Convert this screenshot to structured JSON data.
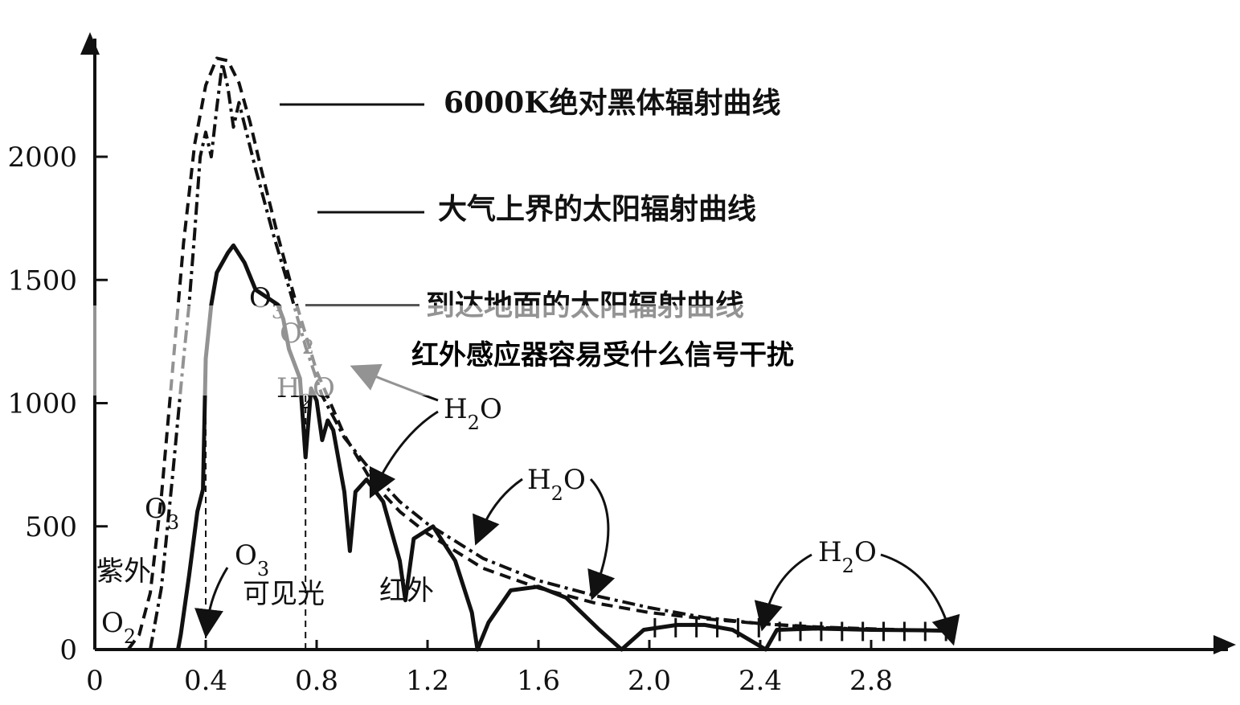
{
  "chart_data": {
    "type": "line",
    "xlim": [
      0,
      3.2
    ],
    "ylim": [
      0,
      2450
    ],
    "x_ticks": [
      "0",
      "0.4",
      "0.8",
      "1.2",
      "1.6",
      "2.0",
      "2.4",
      "2.8"
    ],
    "x_tick_values": [
      0,
      0.4,
      0.8,
      1.2,
      1.6,
      2.0,
      2.4,
      2.8
    ],
    "y_ticks": [
      "0",
      "500",
      "1000",
      "1500",
      "2000"
    ],
    "y_tick_values": [
      0,
      500,
      1000,
      1500,
      2000
    ],
    "series": [
      {
        "name": "6000K绝对黑体辐射曲线",
        "style": "dashed",
        "points": [
          [
            0.12,
            0
          ],
          [
            0.16,
            60
          ],
          [
            0.2,
            230
          ],
          [
            0.24,
            620
          ],
          [
            0.28,
            1130
          ],
          [
            0.32,
            1650
          ],
          [
            0.36,
            2050
          ],
          [
            0.4,
            2290
          ],
          [
            0.44,
            2400
          ],
          [
            0.48,
            2390
          ],
          [
            0.52,
            2300
          ],
          [
            0.56,
            2140
          ],
          [
            0.6,
            1950
          ],
          [
            0.66,
            1680
          ],
          [
            0.72,
            1430
          ],
          [
            0.8,
            1130
          ],
          [
            0.9,
            870
          ],
          [
            1.0,
            680
          ],
          [
            1.1,
            560
          ],
          [
            1.2,
            470
          ],
          [
            1.3,
            400
          ],
          [
            1.4,
            330
          ],
          [
            1.6,
            250
          ],
          [
            1.8,
            190
          ],
          [
            2.0,
            150
          ],
          [
            2.2,
            125
          ],
          [
            2.4,
            105
          ],
          [
            2.6,
            92
          ],
          [
            2.8,
            84
          ],
          [
            3.0,
            78
          ],
          [
            3.1,
            75
          ]
        ]
      },
      {
        "name": "大气上界的太阳辐射曲线",
        "style": "dash-dot",
        "points": [
          [
            0.2,
            0
          ],
          [
            0.24,
            250
          ],
          [
            0.28,
            700
          ],
          [
            0.32,
            1180
          ],
          [
            0.34,
            1400
          ],
          [
            0.36,
            1690
          ],
          [
            0.38,
            2000
          ],
          [
            0.4,
            2100
          ],
          [
            0.42,
            2000
          ],
          [
            0.44,
            2200
          ],
          [
            0.46,
            2380
          ],
          [
            0.48,
            2280
          ],
          [
            0.5,
            2120
          ],
          [
            0.52,
            2220
          ],
          [
            0.54,
            2130
          ],
          [
            0.58,
            1950
          ],
          [
            0.64,
            1700
          ],
          [
            0.7,
            1470
          ],
          [
            0.76,
            1230
          ],
          [
            0.82,
            1030
          ],
          [
            0.9,
            860
          ],
          [
            1.0,
            720
          ],
          [
            1.1,
            600
          ],
          [
            1.2,
            510
          ],
          [
            1.3,
            440
          ],
          [
            1.4,
            370
          ],
          [
            1.6,
            280
          ],
          [
            1.8,
            220
          ],
          [
            2.0,
            170
          ],
          [
            2.2,
            130
          ],
          [
            2.4,
            105
          ],
          [
            2.6,
            90
          ],
          [
            2.8,
            82
          ],
          [
            3.0,
            78
          ],
          [
            3.1,
            76
          ]
        ]
      },
      {
        "name": "到达地面的太阳辐射曲线",
        "style": "solid",
        "points": [
          [
            0.3,
            0
          ],
          [
            0.31,
            60
          ],
          [
            0.34,
            300
          ],
          [
            0.37,
            560
          ],
          [
            0.39,
            650
          ],
          [
            0.4,
            1180
          ],
          [
            0.42,
            1400
          ],
          [
            0.44,
            1530
          ],
          [
            0.48,
            1610
          ],
          [
            0.5,
            1640
          ],
          [
            0.54,
            1570
          ],
          [
            0.58,
            1460
          ],
          [
            0.62,
            1430
          ],
          [
            0.66,
            1400
          ],
          [
            0.68,
            1340
          ],
          [
            0.7,
            1220
          ],
          [
            0.72,
            1160
          ],
          [
            0.74,
            1100
          ],
          [
            0.76,
            780
          ],
          [
            0.78,
            1060
          ],
          [
            0.8,
            1010
          ],
          [
            0.82,
            850
          ],
          [
            0.84,
            930
          ],
          [
            0.86,
            890
          ],
          [
            0.9,
            640
          ],
          [
            0.92,
            400
          ],
          [
            0.94,
            640
          ],
          [
            0.98,
            690
          ],
          [
            1.04,
            600
          ],
          [
            1.1,
            360
          ],
          [
            1.12,
            200
          ],
          [
            1.15,
            450
          ],
          [
            1.22,
            500
          ],
          [
            1.3,
            360
          ],
          [
            1.36,
            150
          ],
          [
            1.38,
            0
          ],
          [
            1.42,
            110
          ],
          [
            1.5,
            240
          ],
          [
            1.6,
            255
          ],
          [
            1.7,
            210
          ],
          [
            1.82,
            80
          ],
          [
            1.9,
            0
          ],
          [
            1.92,
            20
          ],
          [
            1.98,
            80
          ],
          [
            2.1,
            100
          ],
          [
            2.2,
            100
          ],
          [
            2.3,
            80
          ],
          [
            2.36,
            40
          ],
          [
            2.42,
            0
          ],
          [
            2.46,
            80
          ],
          [
            2.6,
            85
          ],
          [
            2.8,
            80
          ],
          [
            3.0,
            78
          ],
          [
            3.1,
            76
          ]
        ]
      }
    ],
    "legend_labels": {
      "blackbody": "6000K绝对黑体辐射曲线",
      "top_atmosphere": "大气上界的太阳辐射曲线",
      "ground": "到达地面的太阳辐射曲线"
    },
    "annotations": {
      "o3_top": "O3",
      "o2_mid": "O2",
      "o3_mid": "O3",
      "h2o_mid": "H2O",
      "h2o_1": "H2O",
      "h2o_2": "H2O",
      "h2o_3": "H2O",
      "o3_left": "O3",
      "o3_low": "O3",
      "o2_low": "O2",
      "uv": "紫外",
      "visible": "可见光",
      "ir": "红外"
    }
  },
  "overlay": {
    "title": "红外感应器容易受什么信号干扰",
    "band_color": "#ffffff"
  }
}
